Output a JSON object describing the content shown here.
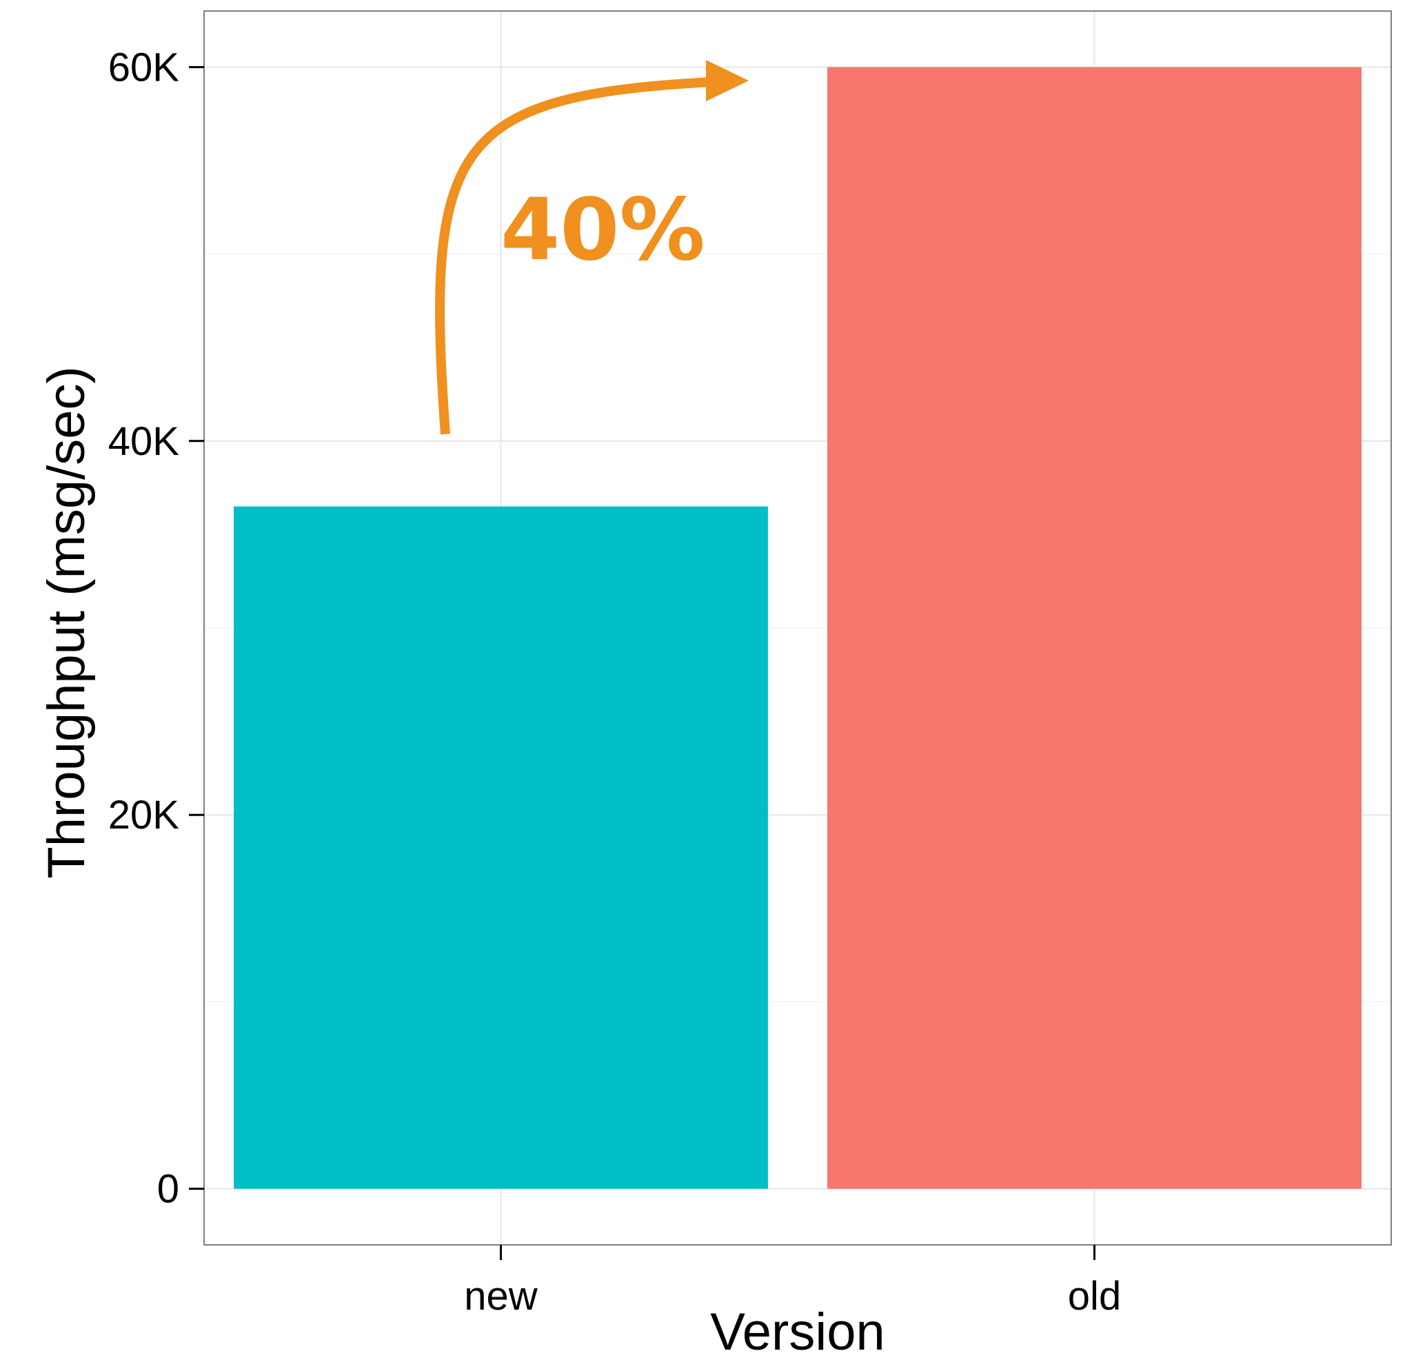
{
  "chart_data": {
    "type": "bar",
    "categories": [
      "new",
      "old"
    ],
    "values": [
      36500,
      60000
    ],
    "bar_colors": [
      "#00BFC4",
      "#F8766D"
    ],
    "xlabel": "Version",
    "ylabel": "Throughput (msg/sec)",
    "ylim": [
      -3000,
      63000
    ],
    "yticks": [
      0,
      20000,
      40000,
      60000
    ],
    "ytick_labels": [
      "0",
      "20K",
      "40K",
      "60K"
    ],
    "grid": true,
    "annotation": {
      "text": "40%",
      "color": "#F0901E"
    }
  }
}
